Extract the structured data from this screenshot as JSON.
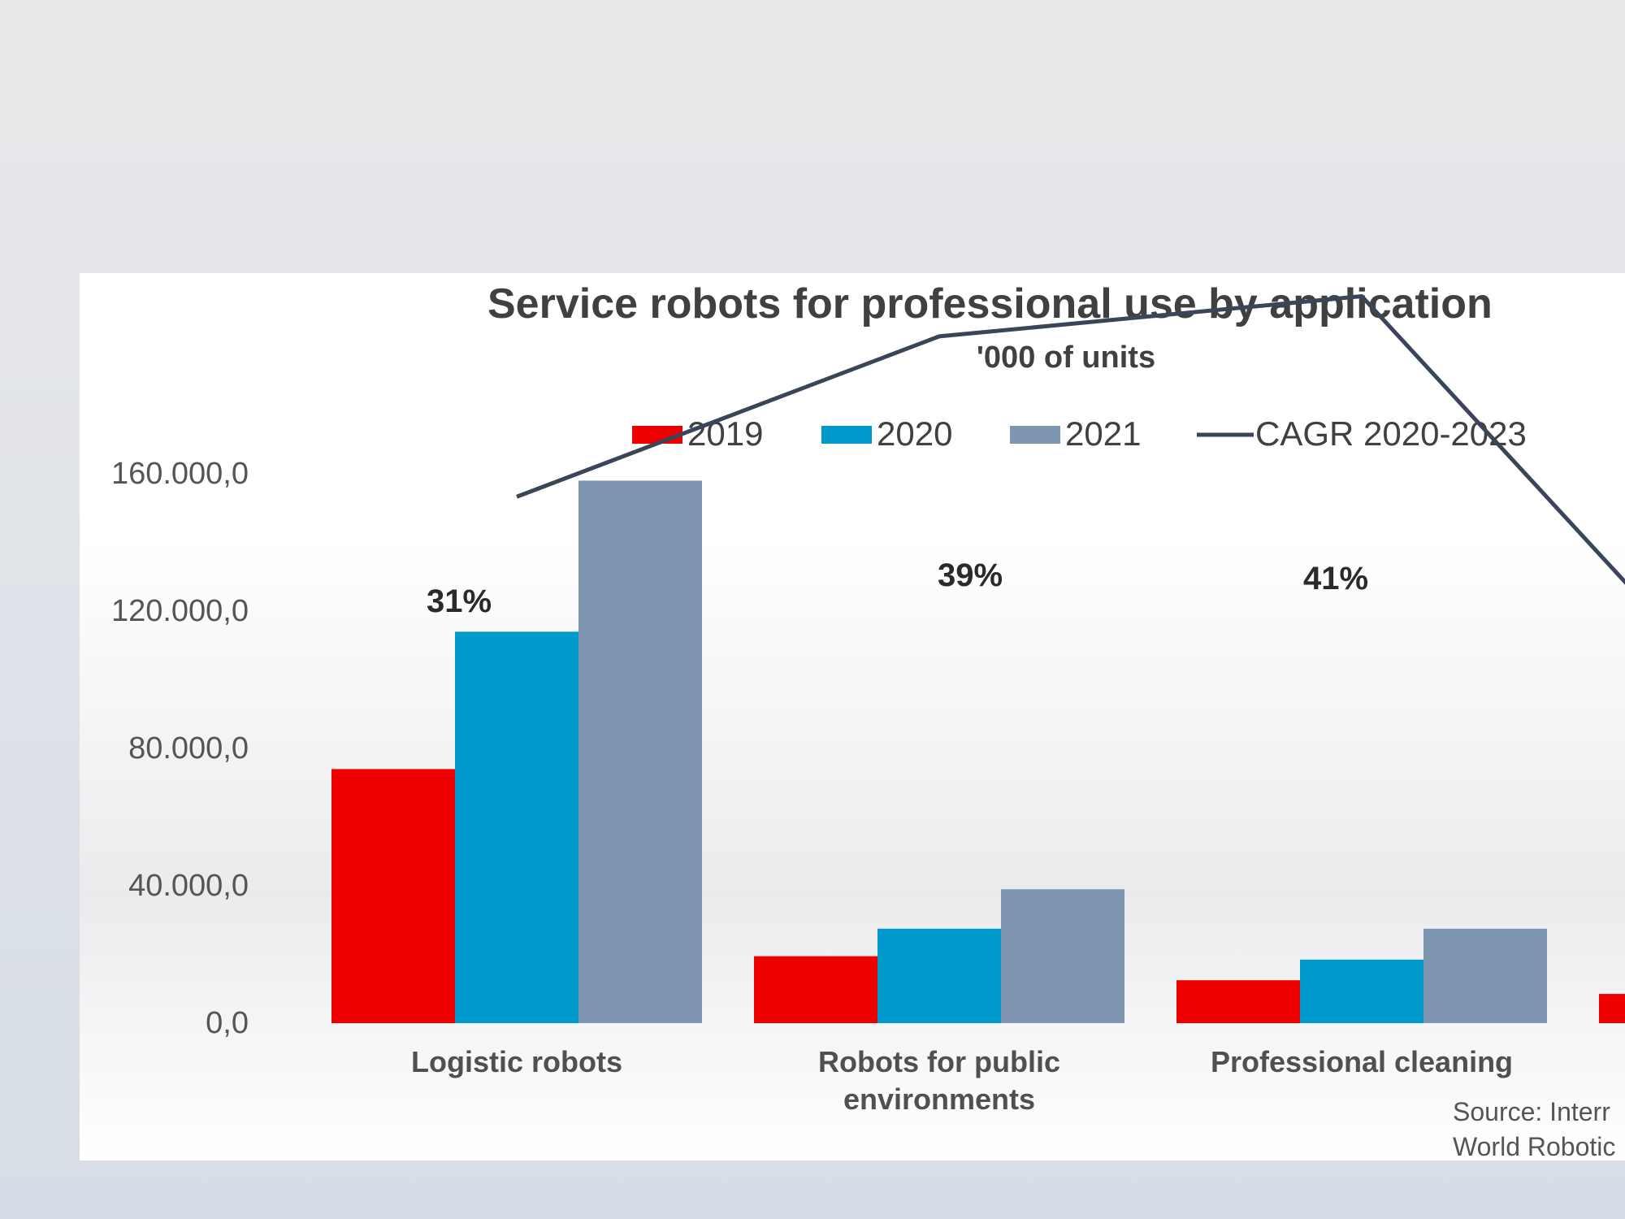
{
  "chart_data": {
    "type": "bar",
    "title": "Service robots for professional use by application",
    "subtitle": "'000 of units",
    "categories": [
      "Logistic robots",
      "Robots for public environments",
      "Professional cleaning",
      ""
    ],
    "category_lines": [
      [
        "Logistic robots"
      ],
      [
        "Robots for public",
        "environments"
      ],
      [
        "Professional cleaning"
      ],
      [
        ""
      ]
    ],
    "series": [
      {
        "name": "2019",
        "color": "#ee0000",
        "values": [
          74000,
          19500,
          12500,
          8500
        ]
      },
      {
        "name": "2020",
        "color": "#0099cc",
        "values": [
          114000,
          27500,
          18500,
          null
        ]
      },
      {
        "name": "2021",
        "color": "#7f96b2",
        "values": [
          158000,
          39000,
          27500,
          null
        ]
      }
    ],
    "line_series": {
      "name": "CAGR 2020-2023",
      "color": "#3a4658",
      "values": [
        31,
        39,
        41,
        null
      ],
      "labels": [
        "31%",
        "39%",
        "41%",
        ""
      ]
    },
    "ylim": [
      0,
      160000
    ],
    "yticks": [
      0,
      40000,
      80000,
      120000,
      160000
    ],
    "ytick_labels": [
      "0,0",
      "40.000,0",
      "80.000,0",
      "120.000,0",
      "160.000,0"
    ],
    "grid": false,
    "legend_position": "top",
    "xlabel": "",
    "ylabel": "",
    "source_lines": [
      "Source: Interr",
      "World Robotic"
    ]
  }
}
